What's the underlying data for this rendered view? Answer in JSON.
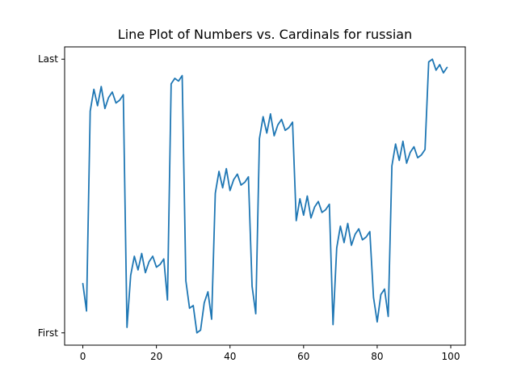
{
  "chart_data": {
    "type": "line",
    "title": "Line Plot of Numbers vs. Cardinals for russian",
    "xlabel": "",
    "ylabel": "",
    "xlim": [
      -4.95,
      103.95
    ],
    "ylim": [
      -0.045,
      1.045
    ],
    "x_ticks": [
      0,
      20,
      40,
      60,
      80,
      100
    ],
    "y_ticks": [
      {
        "value": 0,
        "label": "First"
      },
      {
        "value": 1,
        "label": "Last"
      }
    ],
    "grid": false,
    "legend": "none",
    "series": [
      {
        "color": "#1f77b4",
        "x": [
          0,
          1,
          2,
          3,
          4,
          5,
          6,
          7,
          8,
          9,
          10,
          11,
          12,
          13,
          14,
          15,
          16,
          17,
          18,
          19,
          20,
          21,
          22,
          23,
          24,
          25,
          26,
          27,
          28,
          29,
          30,
          31,
          32,
          33,
          34,
          35,
          36,
          37,
          38,
          39,
          40,
          41,
          42,
          43,
          44,
          45,
          46,
          47,
          48,
          49,
          50,
          51,
          52,
          53,
          54,
          55,
          56,
          57,
          58,
          59,
          60,
          61,
          62,
          63,
          64,
          65,
          66,
          67,
          68,
          69,
          70,
          71,
          72,
          73,
          74,
          75,
          76,
          77,
          78,
          79,
          80,
          81,
          82,
          83,
          84,
          85,
          86,
          87,
          88,
          89,
          90,
          91,
          92,
          93,
          94,
          95,
          96,
          97,
          98,
          99
        ],
        "values": [
          0.18,
          0.08,
          0.81,
          0.89,
          0.83,
          0.9,
          0.82,
          0.86,
          0.88,
          0.84,
          0.85,
          0.87,
          0.02,
          0.21,
          0.28,
          0.23,
          0.29,
          0.22,
          0.26,
          0.28,
          0.24,
          0.25,
          0.27,
          0.12,
          0.91,
          0.93,
          0.92,
          0.94,
          0.19,
          0.09,
          0.1,
          0.0,
          0.01,
          0.11,
          0.15,
          0.05,
          0.51,
          0.59,
          0.53,
          0.6,
          0.52,
          0.56,
          0.58,
          0.54,
          0.55,
          0.57,
          0.17,
          0.07,
          0.71,
          0.79,
          0.73,
          0.8,
          0.72,
          0.76,
          0.78,
          0.74,
          0.75,
          0.77,
          0.41,
          0.49,
          0.43,
          0.5,
          0.42,
          0.46,
          0.48,
          0.44,
          0.45,
          0.47,
          0.03,
          0.31,
          0.39,
          0.33,
          0.4,
          0.32,
          0.36,
          0.38,
          0.34,
          0.35,
          0.37,
          0.13,
          0.04,
          0.14,
          0.16,
          0.06,
          0.61,
          0.69,
          0.63,
          0.7,
          0.62,
          0.66,
          0.68,
          0.64,
          0.65,
          0.67,
          0.99,
          1.0,
          0.96,
          0.98,
          0.95,
          0.97
        ]
      }
    ]
  }
}
